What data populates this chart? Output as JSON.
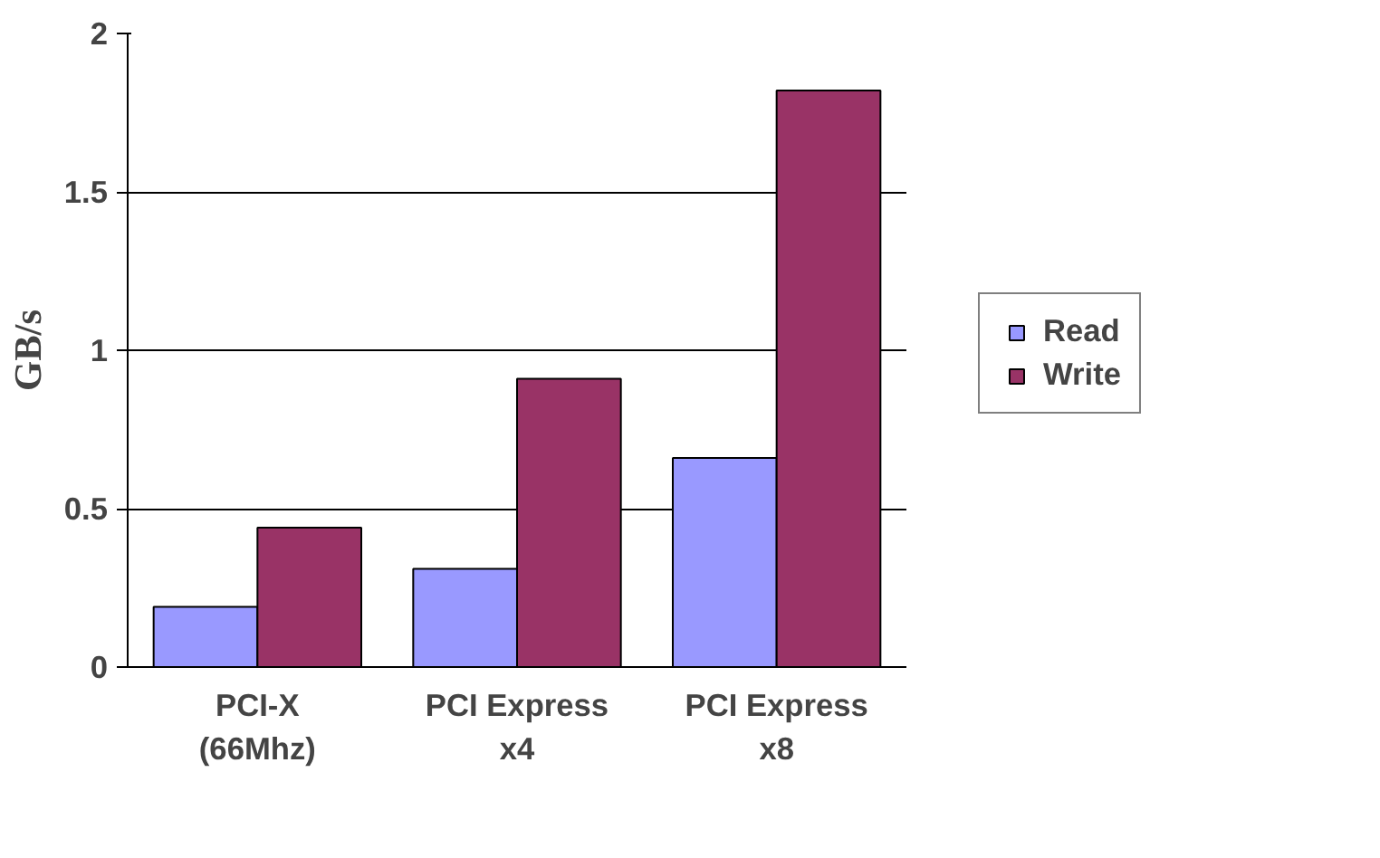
{
  "chart_data": {
    "type": "bar",
    "ylabel": "GB/s",
    "categories": [
      "PCI-X\n(66Mhz)",
      "PCI Express\nx4",
      "PCI Express\nx8"
    ],
    "series": [
      {
        "name": "Read",
        "color": "#9999ff",
        "values": [
          0.19,
          0.31,
          0.66
        ]
      },
      {
        "name": "Write",
        "color": "#993366",
        "values": [
          0.44,
          0.91,
          1.82
        ]
      }
    ],
    "ylim": [
      0,
      2
    ],
    "yticks": [
      0,
      0.5,
      1,
      1.5,
      2
    ],
    "grid": "y",
    "legend": "right"
  }
}
